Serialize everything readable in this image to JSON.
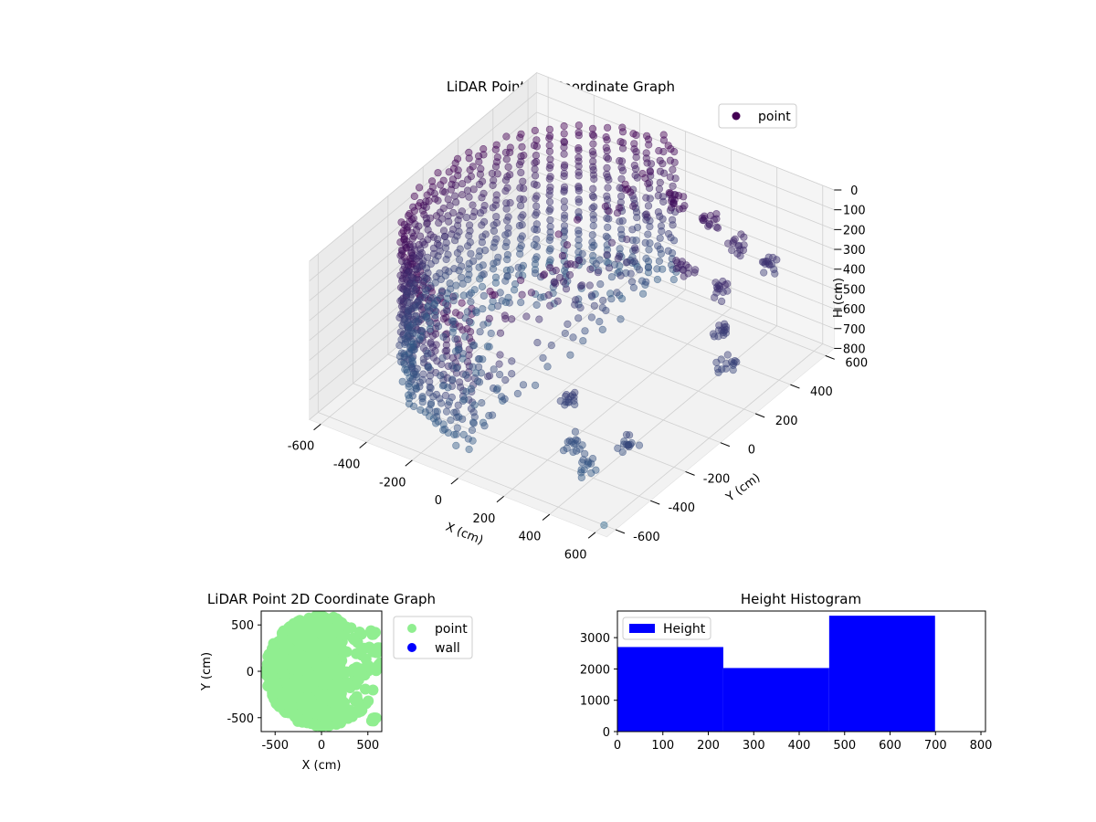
{
  "chart_data": [
    {
      "type": "scatter",
      "title": "LiDAR Point 3D Coordinate Graph",
      "projection": "3d",
      "xlabel": "X (cm)",
      "ylabel": "Y (cm)",
      "zlabel": "H (cm)",
      "xlim": [
        -650,
        650
      ],
      "ylim": [
        -650,
        650
      ],
      "zlim": [
        800,
        0
      ],
      "z_axis_inverted": true,
      "x_ticks": [
        "-600",
        "-400",
        "-200",
        "0",
        "200",
        "400",
        "600"
      ],
      "y_ticks": [
        "-600",
        "-400",
        "-200",
        "0",
        "200",
        "400",
        "600"
      ],
      "z_ticks": [
        "0",
        "100",
        "200",
        "300",
        "400",
        "500",
        "600",
        "700",
        "800"
      ],
      "legend": {
        "position": "top-right",
        "entries": [
          {
            "label": "point",
            "color": "#440154"
          }
        ]
      },
      "colormap": "viridis",
      "series": [
        {
          "name": "point",
          "description_of_shape": "half-cylinder wall of radius ~600 cm spanning x from -600 to 0, heights 0 to ~700 cm, plus sparse scattered clusters for x 0 to 600",
          "cylinder": {
            "radius": 600,
            "x_range": [
              -600,
              0
            ],
            "h_range": [
              0,
              700
            ]
          },
          "scatter_clusters": [
            {
              "x": 150,
              "y": 400,
              "h": 100
            },
            {
              "x": 250,
              "y": 450,
              "h": 200
            },
            {
              "x": 350,
              "y": 500,
              "h": 300
            },
            {
              "x": 450,
              "y": 550,
              "h": 400
            },
            {
              "x": 300,
              "y": 250,
              "h": 250
            },
            {
              "x": 420,
              "y": 300,
              "h": 350
            },
            {
              "x": 500,
              "y": 200,
              "h": 450
            },
            {
              "x": 250,
              "y": -350,
              "h": 500
            },
            {
              "x": 350,
              "y": -450,
              "h": 600
            },
            {
              "x": 450,
              "y": -500,
              "h": 650
            },
            {
              "x": 550,
              "y": -400,
              "h": 550
            },
            {
              "x": 600,
              "y": 100,
              "h": 500
            }
          ]
        }
      ]
    },
    {
      "type": "scatter",
      "title": "LiDAR Point 2D Coordinate Graph",
      "xlabel": "X (cm)",
      "ylabel": "Y (cm)",
      "xlim": [
        -650,
        650
      ],
      "ylim": [
        -650,
        650
      ],
      "x_ticks": [
        "-500",
        "0",
        "500"
      ],
      "y_ticks": [
        "-500",
        "0",
        "500"
      ],
      "legend": {
        "position": "outside-right",
        "entries": [
          {
            "label": "point",
            "color": "#90ee90"
          },
          {
            "label": "wall",
            "color": "#0000ff"
          }
        ]
      },
      "series": [
        {
          "name": "point",
          "color": "#90ee90",
          "region": "filled disc of radius ~600 cm centred at origin, dense for x < 200; sparse clumps for x 200 to 650"
        },
        {
          "name": "wall",
          "color": "#0000ff",
          "points": []
        }
      ]
    },
    {
      "type": "bar",
      "subtype": "histogram",
      "title": "Height Histogram",
      "bins": [
        [
          0,
          233
        ],
        [
          233,
          466
        ],
        [
          466,
          699
        ]
      ],
      "values": [
        2700,
        2030,
        3700
      ],
      "xlim": [
        0,
        810
      ],
      "ylim": [
        0,
        3850
      ],
      "x_ticks": [
        "0",
        "100",
        "200",
        "300",
        "400",
        "500",
        "600",
        "700",
        "800"
      ],
      "y_ticks": [
        "0",
        "1000",
        "2000",
        "3000"
      ],
      "legend": {
        "position": "top-left",
        "entries": [
          {
            "label": "Height",
            "color": "#0000ff"
          }
        ]
      },
      "series": [
        {
          "name": "Height",
          "color": "#0000ff"
        }
      ]
    }
  ]
}
